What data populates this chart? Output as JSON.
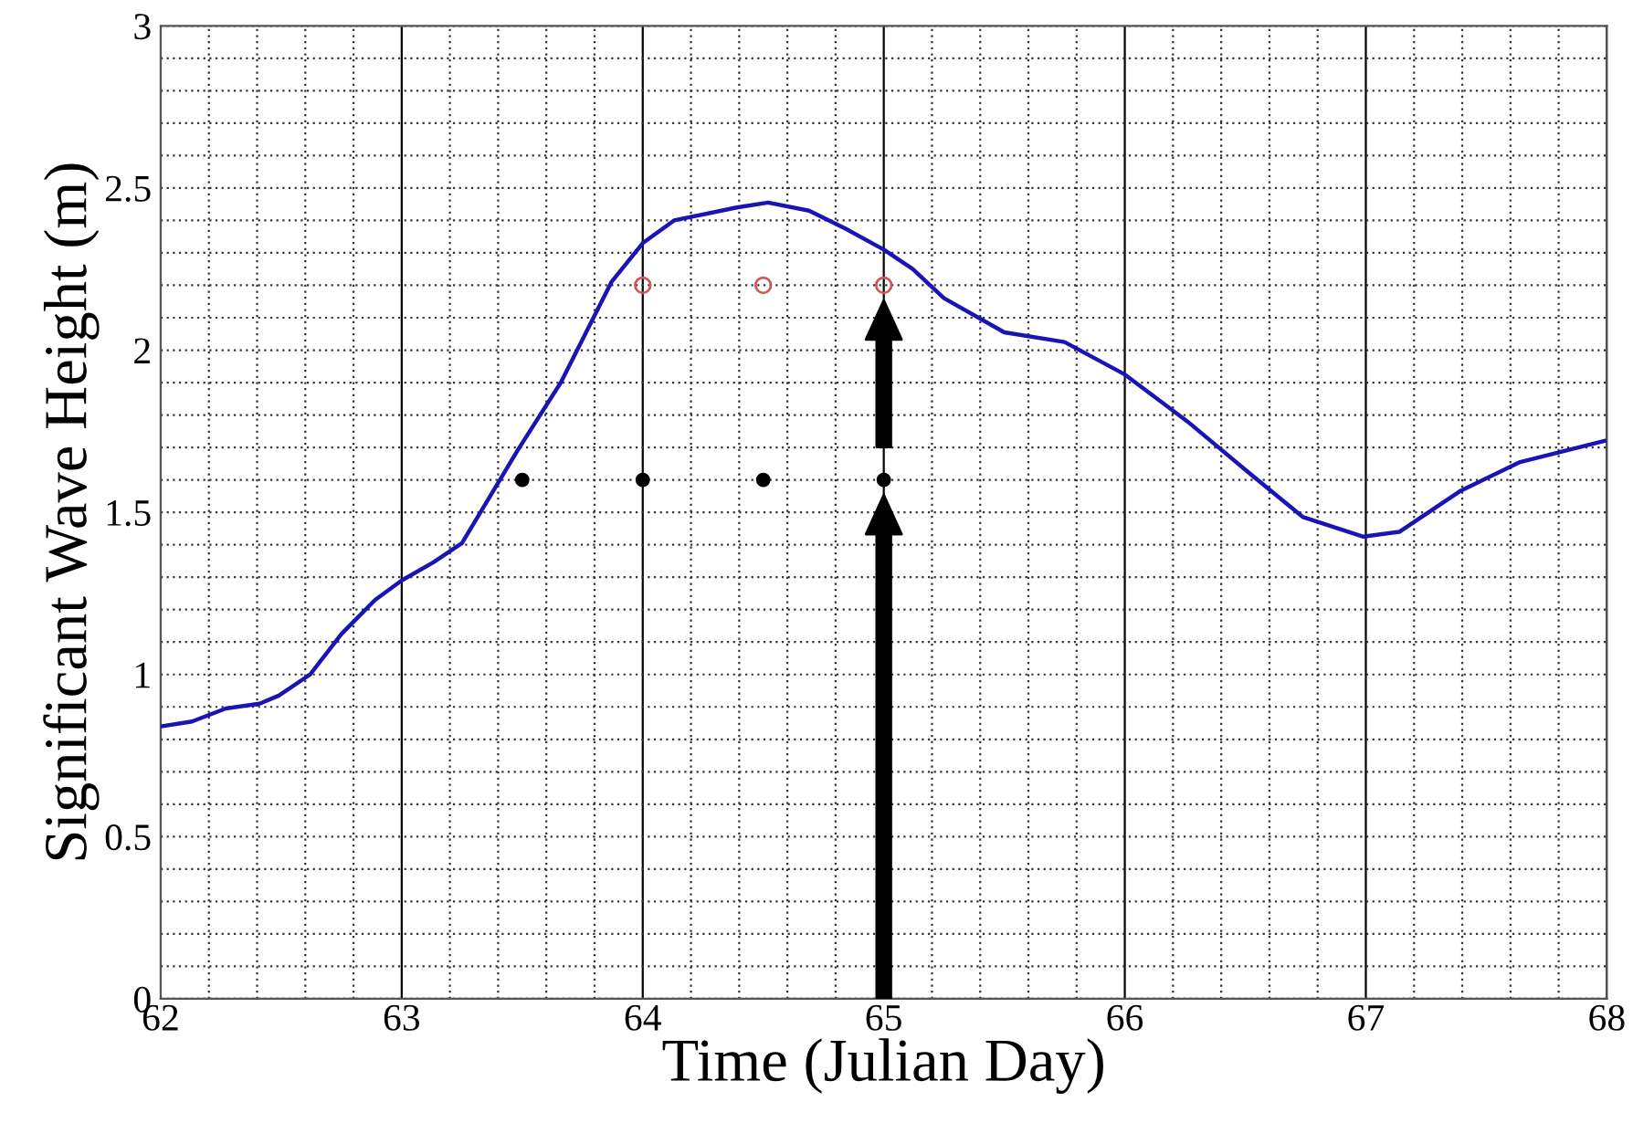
{
  "chart_data": {
    "type": "line",
    "xlabel": "Time (Julian Day)",
    "ylabel": "Significant Wave Height (m)",
    "xlim": [
      62,
      68
    ],
    "xticks": [
      62,
      63,
      64,
      65,
      66,
      67,
      68
    ],
    "ylim": [
      0,
      3
    ],
    "yticks": [
      0,
      0.5,
      1,
      1.5,
      2,
      2.5,
      3
    ],
    "grid": true,
    "series": [
      {
        "color": "#1a14b4",
        "x": [
          62.0,
          62.13,
          62.27,
          62.41,
          62.49,
          62.62,
          62.75,
          62.89,
          63.0,
          63.13,
          63.25,
          63.48,
          63.66,
          63.87,
          64.0,
          64.13,
          64.39,
          64.52,
          64.69,
          64.84,
          65.0,
          65.12,
          65.25,
          65.5,
          65.75,
          66.0,
          66.26,
          66.51,
          66.74,
          66.99,
          67.14,
          67.39,
          67.64,
          67.99
        ],
        "values": [
          0.84,
          0.855,
          0.895,
          0.91,
          0.935,
          1.0,
          1.125,
          1.23,
          1.29,
          1.345,
          1.405,
          1.69,
          1.9,
          2.21,
          2.33,
          2.4,
          2.44,
          2.455,
          2.43,
          2.375,
          2.31,
          2.25,
          2.16,
          2.055,
          2.025,
          1.925,
          1.78,
          1.625,
          1.485,
          1.425,
          1.44,
          1.565,
          1.655,
          1.72
        ]
      },
      {
        "type": "scatter",
        "marker": "circle",
        "color": "#c85a5a",
        "x": [
          64,
          64.5,
          65
        ],
        "values": [
          2.2,
          2.2,
          2.2
        ]
      },
      {
        "type": "scatter",
        "marker": "circle",
        "color": "#000000",
        "x": [
          63.5,
          64,
          64.5,
          65
        ],
        "values": [
          1.6,
          1.6,
          1.6,
          1.6
        ]
      }
    ]
  }
}
